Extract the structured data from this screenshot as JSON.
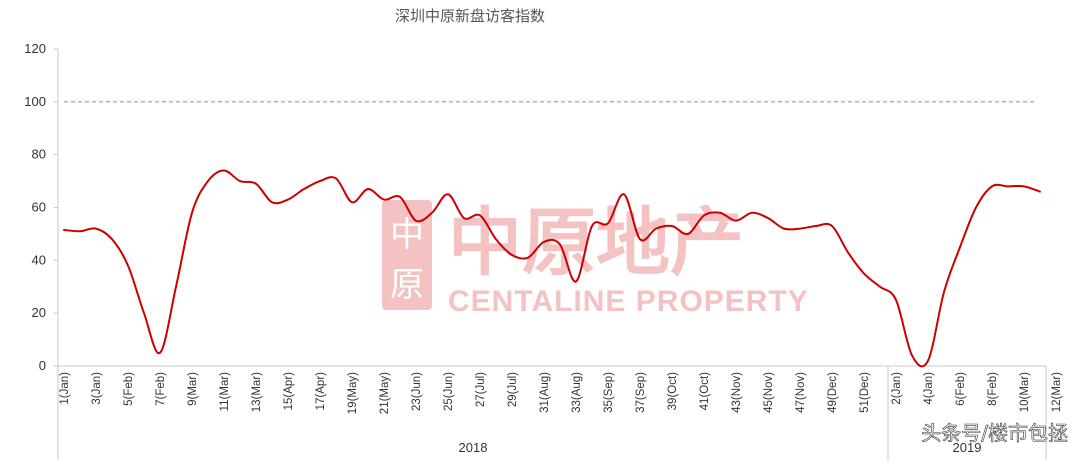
{
  "chart_data": {
    "type": "line",
    "title": "深圳中原新盘访客指数",
    "xlabel": "",
    "ylabel": "",
    "ylim": [
      0,
      120
    ],
    "yticks": [
      0,
      20,
      40,
      60,
      80,
      100,
      120
    ],
    "reference_line": {
      "value": 100,
      "style": "dashed",
      "color": "#999999"
    },
    "line_color": "#cc0000",
    "grid": false,
    "legend": "none",
    "x_tick_labels": [
      "1(Jan)",
      "3(Jan)",
      "5(Feb)",
      "7(Feb)",
      "9(Mar)",
      "11(Mar)",
      "13(Mar)",
      "15(Apr)",
      "17(Apr)",
      "19(May)",
      "21(May)",
      "23(Jun)",
      "25(Jun)",
      "27(Jul)",
      "29(Jul)",
      "31(Aug)",
      "33(Aug)",
      "35(Sep)",
      "37(Sep)",
      "39(Oct)",
      "41(Oct)",
      "43(Nov)",
      "45(Nov)",
      "47(Nov)",
      "49(Dec)",
      "51(Dec)",
      "2(Jan)",
      "4(Jan)",
      "6(Feb)",
      "8(Feb)",
      "10(Mar)",
      "12(Mar)"
    ],
    "year_groups": [
      {
        "label": "2018",
        "from": 0,
        "to": 51
      },
      {
        "label": "2019",
        "from": 52,
        "to": 63
      }
    ],
    "series": [
      {
        "values": [
          51.5,
          51,
          52,
          48,
          38,
          20,
          5,
          30,
          58,
          70,
          74,
          70,
          69,
          62,
          63,
          67,
          70,
          71,
          62,
          67,
          63,
          64,
          55,
          58,
          65,
          56,
          57,
          48,
          42,
          41,
          47,
          46,
          32,
          53,
          54,
          65,
          48,
          52,
          53,
          50,
          57,
          58,
          55,
          58,
          56,
          52,
          52,
          53,
          53,
          43,
          35,
          30,
          25,
          4,
          2,
          28,
          45,
          60,
          68,
          68,
          68,
          66
        ]
      }
    ]
  },
  "watermark": {
    "cn": "中原地产",
    "en": "CENTALINE PROPERTY",
    "logo_char_top": "中",
    "logo_char_bottom": "原"
  },
  "credit": "头条号/楼市包拯"
}
